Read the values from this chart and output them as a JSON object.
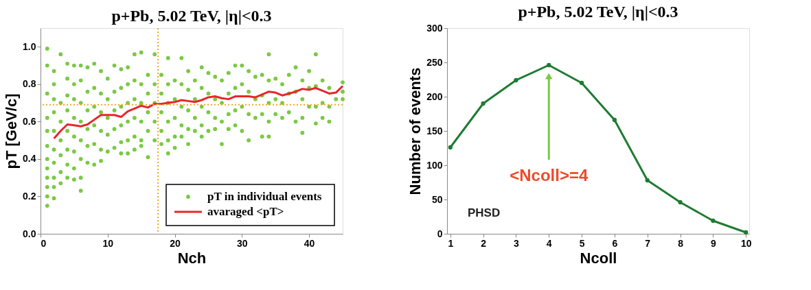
{
  "chart_data": [
    {
      "type": "scatter",
      "title": "p+Pb, 5.02 TeV, |η|<0.3",
      "xlabel": "Nch",
      "ylabel": "pT [GeV/c]",
      "xlim": [
        0,
        45
      ],
      "ylim": [
        0,
        1.1
      ],
      "xticks": [
        0,
        10,
        20,
        30,
        40
      ],
      "yticks": [
        {
          "value": 0,
          "label": "0.0"
        },
        0.2,
        0.4,
        0.6,
        0.8,
        {
          "value": 1,
          "label": "1.0"
        }
      ],
      "grid": false,
      "legend": "bottom right",
      "ref_lines": [
        {
          "axis": "y",
          "value": 0.69,
          "color": "#f5a623",
          "line_style": "dotted"
        },
        {
          "axis": "x",
          "value": 17.5,
          "color": "#f5a623",
          "line_style": "dotted"
        }
      ],
      "series": [
        {
          "name": "pT in individual events",
          "color": "#7ac943",
          "marker": "circle",
          "x": [
            1,
            1,
            1,
            1,
            1,
            1,
            1,
            1,
            1,
            1,
            1,
            1,
            2,
            2,
            2,
            2,
            2,
            2,
            2,
            2,
            2,
            2,
            3,
            3,
            3,
            3,
            3,
            3,
            3,
            4,
            4,
            4,
            4,
            4,
            4,
            4,
            4,
            5,
            5,
            5,
            5,
            5,
            5,
            5,
            5,
            6,
            6,
            6,
            6,
            6,
            6,
            6,
            6,
            7,
            7,
            7,
            7,
            7,
            7,
            8,
            8,
            8,
            8,
            8,
            8,
            9,
            9,
            9,
            9,
            9,
            9,
            10,
            10,
            10,
            10,
            10,
            11,
            11,
            11,
            11,
            11,
            12,
            12,
            12,
            12,
            12,
            12,
            13,
            13,
            13,
            13,
            13,
            13,
            14,
            14,
            14,
            14,
            14,
            14,
            15,
            15,
            15,
            15,
            15,
            15,
            16,
            16,
            16,
            16,
            16,
            17,
            17,
            17,
            17,
            17,
            18,
            18,
            18,
            18,
            18,
            19,
            19,
            19,
            19,
            19,
            19,
            20,
            20,
            20,
            20,
            20,
            21,
            21,
            21,
            21,
            21,
            22,
            22,
            22,
            22,
            22,
            23,
            23,
            23,
            23,
            24,
            24,
            24,
            24,
            24,
            25,
            25,
            25,
            25,
            26,
            26,
            26,
            26,
            27,
            27,
            27,
            27,
            28,
            28,
            28,
            28,
            29,
            29,
            29,
            29,
            30,
            30,
            30,
            30,
            31,
            31,
            31,
            31,
            32,
            32,
            32,
            33,
            33,
            33,
            33,
            34,
            34,
            34,
            34,
            34,
            35,
            35,
            35,
            36,
            36,
            36,
            37,
            37,
            37,
            38,
            38,
            38,
            39,
            39,
            39,
            39,
            40,
            40,
            40,
            41,
            41,
            41,
            41,
            42,
            42,
            42,
            43,
            43,
            43,
            44,
            45,
            45,
            45
          ],
          "values": [
            0.99,
            0.9,
            0.75,
            0.62,
            0.55,
            0.47,
            0.4,
            0.35,
            0.3,
            0.25,
            0.2,
            0.15,
            0.87,
            0.8,
            0.72,
            0.65,
            0.55,
            0.45,
            0.38,
            0.3,
            0.25,
            0.19,
            0.96,
            0.7,
            0.6,
            0.5,
            0.42,
            0.33,
            0.27,
            0.91,
            0.83,
            0.74,
            0.66,
            0.55,
            0.45,
            0.37,
            0.3,
            0.9,
            0.8,
            0.72,
            0.62,
            0.52,
            0.44,
            0.35,
            0.29,
            0.9,
            0.82,
            0.7,
            0.6,
            0.5,
            0.4,
            0.3,
            0.23,
            0.89,
            0.76,
            0.66,
            0.56,
            0.47,
            0.38,
            0.91,
            0.78,
            0.68,
            0.58,
            0.48,
            0.37,
            0.87,
            0.75,
            0.65,
            0.55,
            0.45,
            0.39,
            0.83,
            0.72,
            0.62,
            0.53,
            0.44,
            0.9,
            0.76,
            0.66,
            0.56,
            0.46,
            0.88,
            0.78,
            0.68,
            0.58,
            0.49,
            0.43,
            0.89,
            0.8,
            0.7,
            0.6,
            0.5,
            0.43,
            0.96,
            0.82,
            0.72,
            0.62,
            0.52,
            0.45,
            0.97,
            0.8,
            0.7,
            0.6,
            0.5,
            0.47,
            0.85,
            0.75,
            0.65,
            0.55,
            0.41,
            0.96,
            0.8,
            0.7,
            0.6,
            0.5,
            0.85,
            0.75,
            0.65,
            0.55,
            0.48,
            0.94,
            0.8,
            0.7,
            0.6,
            0.5,
            0.43,
            0.82,
            0.72,
            0.62,
            0.52,
            0.46,
            0.94,
            0.8,
            0.68,
            0.58,
            0.52,
            0.87,
            0.77,
            0.66,
            0.56,
            0.48,
            0.82,
            0.72,
            0.62,
            0.55,
            0.89,
            0.78,
            0.68,
            0.58,
            0.52,
            0.86,
            0.75,
            0.65,
            0.55,
            0.84,
            0.72,
            0.62,
            0.56,
            0.82,
            0.7,
            0.6,
            0.48,
            0.86,
            0.75,
            0.64,
            0.56,
            0.9,
            0.78,
            0.66,
            0.58,
            0.9,
            0.8,
            0.68,
            0.55,
            0.87,
            0.76,
            0.64,
            0.5,
            0.84,
            0.72,
            0.62,
            0.85,
            0.74,
            0.64,
            0.52,
            0.96,
            0.82,
            0.7,
            0.6,
            0.52,
            0.83,
            0.72,
            0.64,
            0.8,
            0.7,
            0.62,
            0.85,
            0.75,
            0.65,
            0.89,
            0.76,
            0.6,
            0.82,
            0.72,
            0.62,
            0.54,
            0.87,
            0.78,
            0.68,
            0.96,
            0.79,
            0.68,
            0.59,
            0.82,
            0.7,
            0.62,
            0.78,
            0.68,
            0.6,
            0.72,
            0.81,
            0.76,
            0.72
          ]
        },
        {
          "type": "line",
          "name": "avaraged <pT>",
          "color": "#e8262a",
          "marker": "none",
          "line_style": "solid",
          "x": [
            2,
            3,
            4,
            5,
            6,
            7,
            8,
            9,
            10,
            11,
            12,
            13,
            14,
            15,
            16,
            17,
            18,
            19,
            20,
            21,
            22,
            23,
            24,
            25,
            26,
            27,
            28,
            29,
            30,
            31,
            32,
            33,
            34,
            35,
            36,
            37,
            38,
            39,
            40,
            41,
            42,
            43,
            44,
            45
          ],
          "values": [
            0.51,
            0.55,
            0.585,
            0.58,
            0.575,
            0.585,
            0.61,
            0.635,
            0.635,
            0.635,
            0.625,
            0.655,
            0.67,
            0.685,
            0.675,
            0.695,
            0.695,
            0.7,
            0.705,
            0.715,
            0.71,
            0.705,
            0.715,
            0.73,
            0.735,
            0.725,
            0.72,
            0.735,
            0.735,
            0.735,
            0.73,
            0.745,
            0.76,
            0.755,
            0.74,
            0.75,
            0.76,
            0.775,
            0.77,
            0.78,
            0.765,
            0.75,
            0.755,
            0.79
          ]
        }
      ]
    },
    {
      "type": "line",
      "title": "p+Pb, 5.02 TeV, |η|<0.3",
      "xlabel": "Ncoll",
      "ylabel": "Number of events",
      "xlim": [
        0.9,
        10.1
      ],
      "ylim": [
        0,
        300
      ],
      "xticks": [
        1,
        2,
        3,
        4,
        5,
        6,
        7,
        8,
        9,
        10
      ],
      "yticks": [
        0,
        50,
        100,
        150,
        200,
        250,
        300
      ],
      "grid": false,
      "legend": false,
      "annotations": [
        "<Ncoll>=4",
        "PHSD"
      ],
      "series": [
        {
          "color": "#1e7b32",
          "marker": "circle",
          "line_style": "solid",
          "x": [
            1,
            2,
            3,
            4,
            5,
            6,
            7,
            8,
            9,
            10
          ],
          "values": [
            126,
            190,
            224,
            246,
            220,
            166,
            78,
            46,
            19,
            2
          ]
        }
      ]
    }
  ]
}
